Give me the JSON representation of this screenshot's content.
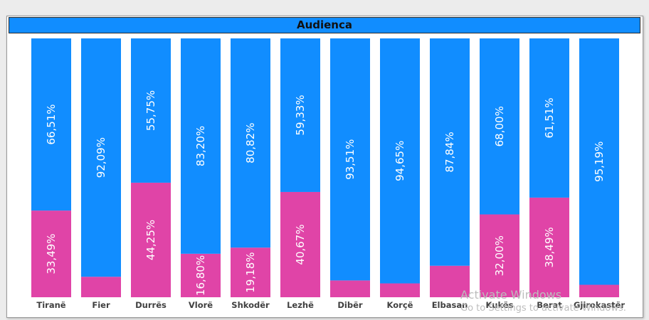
{
  "chart_data": {
    "type": "bar",
    "stacked": "100%",
    "title": "Audienca",
    "categories": [
      "Tiranë",
      "Fier",
      "Durrës",
      "Vlorë",
      "Shkodër",
      "Lezhë",
      "Dibër",
      "Korçë",
      "Elbasan",
      "Kukës",
      "Berat",
      "Gjirokastër"
    ],
    "series": [
      {
        "color": "#e044a7",
        "values": [
          33.49,
          7.91,
          44.25,
          16.8,
          19.18,
          40.67,
          6.49,
          5.35,
          12.16,
          32.0,
          38.49,
          4.81
        ],
        "labels": [
          "33,49%",
          "",
          "44,25%",
          "16,80%",
          "19,18%",
          "40,67%",
          "",
          "",
          "",
          "32,00%",
          "38,49%",
          ""
        ]
      },
      {
        "color": "#118dff",
        "values": [
          66.51,
          92.09,
          55.75,
          83.2,
          80.82,
          59.33,
          93.51,
          94.65,
          87.84,
          68.0,
          61.51,
          95.19
        ],
        "labels": [
          "66,51%",
          "92,09%",
          "55,75%",
          "83,20%",
          "80,82%",
          "59,33%",
          "93,51%",
          "94,65%",
          "87,84%",
          "68,00%",
          "61,51%",
          "95,19%"
        ]
      }
    ],
    "ylim": [
      0,
      100
    ],
    "grid": false,
    "legend": "none"
  },
  "watermark": {
    "line1": "Activate Windows",
    "line2": "Go to Settings to activate Windows."
  }
}
